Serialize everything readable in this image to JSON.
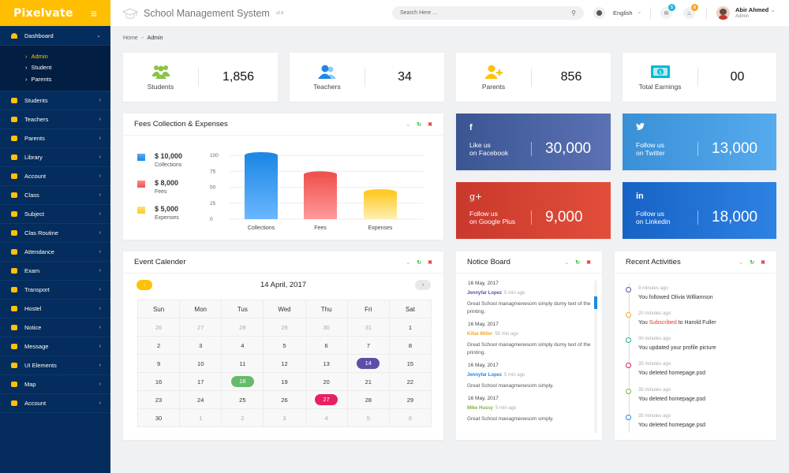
{
  "brand": {
    "name": "Pixelvate",
    "menu_icon": "hamburger-icon"
  },
  "header": {
    "title": "School Management System",
    "version": "v2.8",
    "search_placeholder": "Search Here ...",
    "language": "English",
    "messages_badge": "5",
    "notifications_badge": "8",
    "user_name": "Abir Ahmed",
    "user_role": "Admin",
    "colors": {
      "messages_badge": "#1fb5d6",
      "notifications_badge": "#f5a623"
    }
  },
  "sidebar": {
    "dashboard": {
      "label": "Dashboard",
      "icon": "dashboard-icon"
    },
    "submenu": [
      {
        "label": "Admin",
        "active": true
      },
      {
        "label": "Student",
        "active": false
      },
      {
        "label": "Parents",
        "active": false
      }
    ],
    "items": [
      {
        "label": "Students",
        "icon": "students-icon"
      },
      {
        "label": "Teachers",
        "icon": "teachers-icon"
      },
      {
        "label": "Parents",
        "icon": "parents-icon"
      },
      {
        "label": "Library",
        "icon": "library-icon"
      },
      {
        "label": "Account",
        "icon": "account-icon"
      },
      {
        "label": "Class",
        "icon": "class-icon"
      },
      {
        "label": "Subject",
        "icon": "subject-icon"
      },
      {
        "label": "Clas Routine",
        "icon": "routine-icon"
      },
      {
        "label": "Attendance",
        "icon": "attendance-icon"
      },
      {
        "label": "Exam",
        "icon": "exam-icon"
      },
      {
        "label": "Transport",
        "icon": "transport-icon"
      },
      {
        "label": "Hostel",
        "icon": "hostel-icon"
      },
      {
        "label": "Notice",
        "icon": "notice-icon"
      },
      {
        "label": "Message",
        "icon": "message-icon"
      },
      {
        "label": "UI Elements",
        "icon": "ui-elements-icon"
      },
      {
        "label": "Map",
        "icon": "map-icon"
      },
      {
        "label": "Account",
        "icon": "settings-icon"
      }
    ]
  },
  "breadcrumb": {
    "home": "Home",
    "sep": "-",
    "current": "Admin"
  },
  "stats": [
    {
      "label": "Students",
      "value": "1,856",
      "icon": "students-group-icon",
      "color": "#8bc34a"
    },
    {
      "label": "Teachers",
      "value": "34",
      "icon": "teachers-icon",
      "color": "#1e88e5"
    },
    {
      "label": "Parents",
      "value": "856",
      "icon": "add-parent-icon",
      "color": "#ffc107"
    },
    {
      "label": "Total Earnings",
      "value": "00",
      "icon": "money-icon",
      "color": "#00bcd4"
    }
  ],
  "fees": {
    "title": "Fees Collection & Expenses",
    "legend": [
      {
        "value": "$ 10,000",
        "label": "Collections",
        "color": "#1e88e5"
      },
      {
        "value": "$ 8,000",
        "label": "Fees",
        "color": "#ef5350"
      },
      {
        "value": "$ 5,000",
        "label": "Expenses",
        "color": "#ffca28"
      }
    ]
  },
  "chart_data": {
    "type": "bar",
    "title": "Fees Collection & Expenses",
    "categories": [
      "Collections",
      "Fees",
      "Expenses"
    ],
    "values": [
      100,
      70,
      42
    ],
    "yticks": [
      0,
      25,
      50,
      75,
      100
    ],
    "ylim": [
      0,
      100
    ],
    "xlabel": "",
    "ylabel": "",
    "grid": true,
    "colors": [
      "#1e88e5",
      "#ef5350",
      "#ffca28"
    ],
    "legend": [
      "$ 10,000 Collections",
      "$ 8,000 Fees",
      "$ 5,000 Expenses"
    ],
    "legend_position": "left"
  },
  "social": [
    {
      "icon": "facebook-icon",
      "glyph": "f",
      "line1": "Like us",
      "line2": "on Facebook",
      "value": "30,000",
      "bg": "linear-gradient(90deg,#3b5593,#5a72b4)"
    },
    {
      "icon": "twitter-icon",
      "glyph": "🐦",
      "line1": "Follow us",
      "line2": "on Twitter",
      "value": "13,000",
      "bg": "linear-gradient(90deg,#3a90d6,#56aaee)"
    },
    {
      "icon": "google-plus-icon",
      "glyph": "g+",
      "line1": "Follow us",
      "line2": "on Google Plus",
      "value": "9,000",
      "bg": "linear-gradient(90deg,#c9382c,#e24e3a)"
    },
    {
      "icon": "linkedin-icon",
      "glyph": "in",
      "line1": "Follow us",
      "line2": "on Linkedin",
      "value": "18,000",
      "bg": "linear-gradient(90deg,#1762c5,#2d82e3)"
    }
  ],
  "calendar": {
    "title": "Event Calender",
    "month_label": "14 April, 2017",
    "prev": "‹",
    "next": "›",
    "days": [
      "Sun",
      "Mon",
      "Tus",
      "Wed",
      "Thu",
      "Fri",
      "Sat"
    ],
    "weeks": [
      [
        "26",
        "27",
        "28",
        "29",
        "30",
        "31",
        "1"
      ],
      [
        "2",
        "3",
        "4",
        "5",
        "6",
        "7",
        "8"
      ],
      [
        "9",
        "10",
        "11",
        "12",
        "13",
        "14",
        "15"
      ],
      [
        "16",
        "17",
        "18",
        "19",
        "20",
        "21",
        "22"
      ],
      [
        "23",
        "24",
        "25",
        "26",
        "27",
        "28",
        "29"
      ],
      [
        "30",
        "1",
        "2",
        "3",
        "4",
        "5",
        "6"
      ]
    ],
    "events": {
      "14": "#5c4fa8",
      "18": "#66bb6a",
      "27": "#e91e63"
    }
  },
  "notice": {
    "title": "Notice Board",
    "items": [
      {
        "date": "16 May, 2017",
        "author": "Jennyfar Lopez",
        "ago": "5 min ago",
        "text": "Great School managmenesom simply dumy text of the printing.",
        "color": "#5c4fa8"
      },
      {
        "date": "16 May, 2017",
        "author": "Killar Miller",
        "ago": "55 min ago",
        "text": "Great School managmenesom simply dumy text of the printing.",
        "color": "#f5a623"
      },
      {
        "date": "16 May, 2017",
        "author": "Jennyfar Lopez",
        "ago": "5 min ago",
        "text": "Great School managmenesom simply.",
        "color": "#1e88e5"
      },
      {
        "date": "16 May, 2017",
        "author": "Mike Hussy",
        "ago": "5 min ago",
        "text": "Great School managmenesom simply.",
        "color": "#7cb342"
      }
    ]
  },
  "activities": {
    "title": "Recent Activities",
    "items": [
      {
        "time": "9 minutes ago",
        "pre": "You followed Olivia Williamson",
        "hl": "",
        "post": "",
        "color": "#5c4fa8"
      },
      {
        "time": "20 minutes ago",
        "pre": "You ",
        "hl": "Subscribed",
        "post": " to Harold Fuller",
        "color": "#f5a623"
      },
      {
        "time": "30 minutes ago",
        "pre": "You updated your profile picture",
        "hl": "",
        "post": "",
        "color": "#26a69a"
      },
      {
        "time": "35 minutes ago",
        "pre": "You deleted homepage.psd",
        "hl": "",
        "post": "",
        "color": "#d81b60"
      },
      {
        "time": "35 minutes ago",
        "pre": "You deleted homepage.psd",
        "hl": "",
        "post": "",
        "color": "#7cb342"
      },
      {
        "time": "35 minutes ago",
        "pre": "You deleted homepage.psd",
        "hl": "",
        "post": "",
        "color": "#1e88e5"
      }
    ]
  },
  "panel_tools": {
    "minimize": "⌄",
    "refresh": "↻",
    "close": "✖"
  }
}
